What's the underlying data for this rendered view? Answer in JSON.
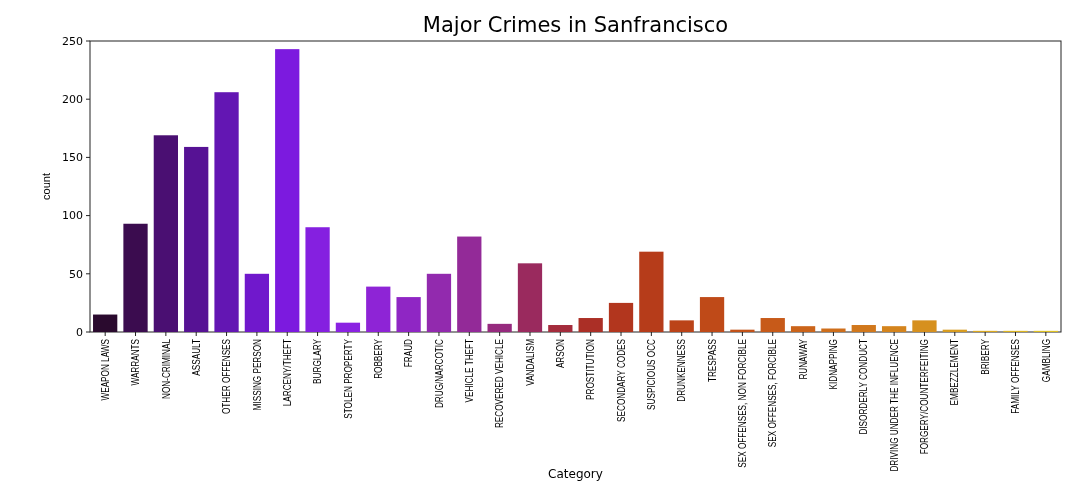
{
  "chart_data": {
    "type": "bar",
    "title": "Major Crimes in Sanfrancisco",
    "xlabel": "Category",
    "ylabel": "count",
    "categories": [
      "WEAPON LAWS",
      "WARRANTS",
      "NON-CRIMINAL",
      "ASSAULT",
      "OTHER OFFENSES",
      "MISSING PERSON",
      "LARCENY/THEFT",
      "BURGLARY",
      "STOLEN PROPERTY",
      "ROBBERY",
      "FRAUD",
      "DRUG/NARCOTIC",
      "VEHICLE THEFT",
      "RECOVERED VEHICLE",
      "VANDALISM",
      "ARSON",
      "PROSTITUTION",
      "SECONDARY CODES",
      "SUSPICIOUS OCC",
      "DRUNKENNESS",
      "TRESPASS",
      "SEX OFFENSES, NON FORCIBLE",
      "SEX OFFENSES, FORCIBLE",
      "RUNAWAY",
      "KIDNAPPING",
      "DISORDERLY CONDUCT",
      "DRIVING UNDER THE INFLUENCE",
      "FORGERY/COUNTERFEITING",
      "EMBEZZLEMENT",
      "BRIBERY",
      "FAMILY OFFENSES",
      "GAMBLING"
    ],
    "values": [
      15,
      93,
      169,
      159,
      206,
      50,
      243,
      90,
      8,
      39,
      30,
      50,
      82,
      7,
      59,
      6,
      12,
      25,
      69,
      10,
      30,
      2,
      12,
      5,
      3,
      6,
      5,
      10,
      2,
      1,
      1,
      1
    ],
    "colors": [
      "#2a0a2e",
      "#3b0c4f",
      "#4a0f72",
      "#561294",
      "#6316b3",
      "#7018cc",
      "#7c1adf",
      "#8520e0",
      "#8a22e2",
      "#8e24d6",
      "#8f26c4",
      "#922aae",
      "#932a98",
      "#962a7e",
      "#9a2a5e",
      "#a42c3c",
      "#ab2f26",
      "#b2361e",
      "#b63c1a",
      "#bb4318",
      "#bf4a18",
      "#c35218",
      "#c75a19",
      "#cb641a",
      "#ce6e1b",
      "#d1781c",
      "#d4841d",
      "#d6901e",
      "#d89c1f",
      "#daa820",
      "#dcb421",
      "#dec022"
    ],
    "ylim": [
      0,
      250
    ],
    "yticks": [
      0,
      50,
      100,
      150,
      200,
      250
    ]
  }
}
